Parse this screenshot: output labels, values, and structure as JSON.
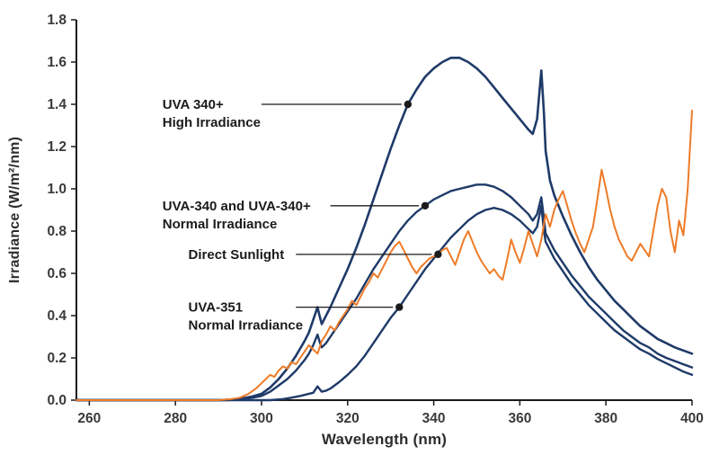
{
  "chart_data": {
    "type": "line",
    "title": "",
    "xlabel": "Wavelength (nm)",
    "ylabel": "Irradiance (W/m²/nm)",
    "xlim": [
      257,
      400
    ],
    "ylim": [
      0,
      1.8
    ],
    "x_ticks": [
      260,
      280,
      300,
      320,
      340,
      360,
      380,
      400
    ],
    "y_ticks": [
      0.0,
      0.2,
      0.4,
      0.6,
      0.8,
      1.0,
      1.2,
      1.4,
      1.6,
      1.8
    ],
    "grid": false,
    "legend_position": "none",
    "axis_color": "#1a1a1a",
    "tick_text_color": "#3a3a3a",
    "annotation_color": "#1b1b1b",
    "series": [
      {
        "name": "UVA 340+ High Irradiance",
        "color": "#1e3a68",
        "width": 2.6,
        "points": [
          [
            257,
            0
          ],
          [
            290,
            0
          ],
          [
            294,
            0.004
          ],
          [
            296,
            0.01
          ],
          [
            298,
            0.018
          ],
          [
            300,
            0.03
          ],
          [
            302,
            0.06
          ],
          [
            304,
            0.1
          ],
          [
            306,
            0.15
          ],
          [
            308,
            0.21
          ],
          [
            310,
            0.28
          ],
          [
            311,
            0.32
          ],
          [
            312,
            0.38
          ],
          [
            313,
            0.44
          ],
          [
            313.6,
            0.39
          ],
          [
            314,
            0.36
          ],
          [
            315,
            0.4
          ],
          [
            316,
            0.44
          ],
          [
            318,
            0.53
          ],
          [
            320,
            0.62
          ],
          [
            322,
            0.72
          ],
          [
            324,
            0.83
          ],
          [
            326,
            0.95
          ],
          [
            328,
            1.07
          ],
          [
            330,
            1.19
          ],
          [
            332,
            1.3
          ],
          [
            334,
            1.4
          ],
          [
            336,
            1.47
          ],
          [
            338,
            1.53
          ],
          [
            340,
            1.57
          ],
          [
            342,
            1.6
          ],
          [
            344,
            1.62
          ],
          [
            346,
            1.62
          ],
          [
            348,
            1.6
          ],
          [
            350,
            1.57
          ],
          [
            352,
            1.53
          ],
          [
            354,
            1.48
          ],
          [
            356,
            1.43
          ],
          [
            358,
            1.38
          ],
          [
            360,
            1.33
          ],
          [
            362,
            1.28
          ],
          [
            363,
            1.26
          ],
          [
            364,
            1.33
          ],
          [
            365,
            1.56
          ],
          [
            365.6,
            1.36
          ],
          [
            366,
            1.18
          ],
          [
            367,
            1.04
          ],
          [
            368,
            0.97
          ],
          [
            370,
            0.87
          ],
          [
            372,
            0.78
          ],
          [
            374,
            0.7
          ],
          [
            376,
            0.63
          ],
          [
            378,
            0.57
          ],
          [
            380,
            0.52
          ],
          [
            382,
            0.47
          ],
          [
            384,
            0.43
          ],
          [
            386,
            0.39
          ],
          [
            388,
            0.35
          ],
          [
            390,
            0.32
          ],
          [
            392,
            0.29
          ],
          [
            394,
            0.27
          ],
          [
            396,
            0.25
          ],
          [
            398,
            0.235
          ],
          [
            400,
            0.22
          ]
        ]
      },
      {
        "name": "UVA-340 and UVA-340+ Normal Irradiance",
        "color": "#1e3a68",
        "width": 2.4,
        "points": [
          [
            257,
            0
          ],
          [
            292,
            0
          ],
          [
            296,
            0.006
          ],
          [
            298,
            0.012
          ],
          [
            300,
            0.02
          ],
          [
            302,
            0.04
          ],
          [
            304,
            0.07
          ],
          [
            306,
            0.1
          ],
          [
            308,
            0.14
          ],
          [
            310,
            0.19
          ],
          [
            311,
            0.22
          ],
          [
            312,
            0.26
          ],
          [
            313,
            0.31
          ],
          [
            313.6,
            0.27
          ],
          [
            314,
            0.25
          ],
          [
            315,
            0.27
          ],
          [
            316,
            0.3
          ],
          [
            318,
            0.36
          ],
          [
            320,
            0.42
          ],
          [
            322,
            0.48
          ],
          [
            324,
            0.55
          ],
          [
            326,
            0.62
          ],
          [
            328,
            0.68
          ],
          [
            330,
            0.74
          ],
          [
            332,
            0.8
          ],
          [
            334,
            0.85
          ],
          [
            336,
            0.89
          ],
          [
            338,
            0.92
          ],
          [
            340,
            0.95
          ],
          [
            342,
            0.97
          ],
          [
            344,
            0.99
          ],
          [
            346,
            1.0
          ],
          [
            348,
            1.01
          ],
          [
            350,
            1.02
          ],
          [
            352,
            1.02
          ],
          [
            354,
            1.01
          ],
          [
            356,
            0.99
          ],
          [
            358,
            0.96
          ],
          [
            360,
            0.92
          ],
          [
            362,
            0.88
          ],
          [
            363,
            0.85
          ],
          [
            364,
            0.88
          ],
          [
            365,
            0.96
          ],
          [
            365.6,
            0.86
          ],
          [
            366,
            0.79
          ],
          [
            368,
            0.71
          ],
          [
            370,
            0.65
          ],
          [
            372,
            0.59
          ],
          [
            374,
            0.54
          ],
          [
            376,
            0.49
          ],
          [
            378,
            0.45
          ],
          [
            380,
            0.41
          ],
          [
            382,
            0.37
          ],
          [
            384,
            0.33
          ],
          [
            386,
            0.3
          ],
          [
            388,
            0.27
          ],
          [
            390,
            0.25
          ],
          [
            392,
            0.22
          ],
          [
            394,
            0.2
          ],
          [
            396,
            0.185
          ],
          [
            398,
            0.17
          ],
          [
            400,
            0.155
          ]
        ]
      },
      {
        "name": "UVA-351 Normal Irradiance",
        "color": "#1e3a68",
        "width": 2.4,
        "points": [
          [
            257,
            0
          ],
          [
            302,
            0
          ],
          [
            305,
            0.005
          ],
          [
            307,
            0.012
          ],
          [
            309,
            0.02
          ],
          [
            311,
            0.03
          ],
          [
            312,
            0.035
          ],
          [
            313,
            0.065
          ],
          [
            314,
            0.04
          ],
          [
            315,
            0.045
          ],
          [
            316,
            0.055
          ],
          [
            318,
            0.085
          ],
          [
            320,
            0.12
          ],
          [
            322,
            0.16
          ],
          [
            324,
            0.21
          ],
          [
            326,
            0.27
          ],
          [
            328,
            0.33
          ],
          [
            330,
            0.39
          ],
          [
            332,
            0.44
          ],
          [
            334,
            0.5
          ],
          [
            336,
            0.56
          ],
          [
            338,
            0.62
          ],
          [
            340,
            0.67
          ],
          [
            342,
            0.72
          ],
          [
            344,
            0.77
          ],
          [
            346,
            0.81
          ],
          [
            348,
            0.85
          ],
          [
            350,
            0.88
          ],
          [
            352,
            0.9
          ],
          [
            354,
            0.91
          ],
          [
            356,
            0.9
          ],
          [
            358,
            0.88
          ],
          [
            360,
            0.85
          ],
          [
            362,
            0.81
          ],
          [
            363,
            0.79
          ],
          [
            364,
            0.82
          ],
          [
            365,
            0.92
          ],
          [
            365.6,
            0.8
          ],
          [
            366,
            0.75
          ],
          [
            368,
            0.67
          ],
          [
            370,
            0.61
          ],
          [
            372,
            0.55
          ],
          [
            374,
            0.5
          ],
          [
            376,
            0.45
          ],
          [
            378,
            0.41
          ],
          [
            380,
            0.37
          ],
          [
            382,
            0.33
          ],
          [
            384,
            0.3
          ],
          [
            386,
            0.27
          ],
          [
            388,
            0.24
          ],
          [
            390,
            0.22
          ],
          [
            392,
            0.195
          ],
          [
            394,
            0.175
          ],
          [
            396,
            0.155
          ],
          [
            398,
            0.135
          ],
          [
            400,
            0.12
          ]
        ]
      },
      {
        "name": "Direct Sunlight",
        "color": "#ee7b28",
        "width": 2.0,
        "points": [
          [
            257,
            0
          ],
          [
            290,
            0
          ],
          [
            293,
            0.005
          ],
          [
            295,
            0.012
          ],
          [
            297,
            0.03
          ],
          [
            299,
            0.06
          ],
          [
            300,
            0.08
          ],
          [
            301,
            0.1
          ],
          [
            302,
            0.12
          ],
          [
            303,
            0.11
          ],
          [
            304,
            0.14
          ],
          [
            305,
            0.16
          ],
          [
            306,
            0.15
          ],
          [
            307,
            0.18
          ],
          [
            308,
            0.17
          ],
          [
            309,
            0.2
          ],
          [
            310,
            0.23
          ],
          [
            311,
            0.26
          ],
          [
            312,
            0.24
          ],
          [
            313,
            0.22
          ],
          [
            314,
            0.28
          ],
          [
            315,
            0.31
          ],
          [
            316,
            0.35
          ],
          [
            317,
            0.33
          ],
          [
            318,
            0.37
          ],
          [
            319,
            0.4
          ],
          [
            320,
            0.43
          ],
          [
            321,
            0.47
          ],
          [
            322,
            0.45
          ],
          [
            323,
            0.49
          ],
          [
            324,
            0.53
          ],
          [
            325,
            0.56
          ],
          [
            326,
            0.6
          ],
          [
            327,
            0.58
          ],
          [
            328,
            0.62
          ],
          [
            329,
            0.66
          ],
          [
            330,
            0.7
          ],
          [
            331,
            0.73
          ],
          [
            332,
            0.75
          ],
          [
            333,
            0.71
          ],
          [
            334,
            0.67
          ],
          [
            335,
            0.63
          ],
          [
            336,
            0.6
          ],
          [
            337,
            0.63
          ],
          [
            338,
            0.65
          ],
          [
            339,
            0.67
          ],
          [
            341,
            0.69
          ],
          [
            342,
            0.71
          ],
          [
            343,
            0.72
          ],
          [
            344,
            0.68
          ],
          [
            345,
            0.64
          ],
          [
            346,
            0.7
          ],
          [
            347,
            0.76
          ],
          [
            348,
            0.8
          ],
          [
            349,
            0.75
          ],
          [
            350,
            0.7
          ],
          [
            351,
            0.66
          ],
          [
            352,
            0.63
          ],
          [
            353,
            0.6
          ],
          [
            354,
            0.62
          ],
          [
            355,
            0.59
          ],
          [
            356,
            0.57
          ],
          [
            357,
            0.66
          ],
          [
            358,
            0.76
          ],
          [
            359,
            0.7
          ],
          [
            360,
            0.65
          ],
          [
            361,
            0.72
          ],
          [
            362,
            0.8
          ],
          [
            363,
            0.74
          ],
          [
            364,
            0.68
          ],
          [
            365,
            0.76
          ],
          [
            366,
            0.88
          ],
          [
            367,
            0.82
          ],
          [
            368,
            0.9
          ],
          [
            369,
            0.95
          ],
          [
            370,
            0.99
          ],
          [
            371,
            0.92
          ],
          [
            372,
            0.85
          ],
          [
            373,
            0.79
          ],
          [
            374,
            0.74
          ],
          [
            375,
            0.7
          ],
          [
            376,
            0.76
          ],
          [
            377,
            0.82
          ],
          [
            378,
            0.95
          ],
          [
            379,
            1.09
          ],
          [
            380,
            1.0
          ],
          [
            381,
            0.9
          ],
          [
            382,
            0.82
          ],
          [
            383,
            0.76
          ],
          [
            384,
            0.72
          ],
          [
            385,
            0.68
          ],
          [
            386,
            0.66
          ],
          [
            387,
            0.7
          ],
          [
            388,
            0.74
          ],
          [
            389,
            0.71
          ],
          [
            390,
            0.68
          ],
          [
            391,
            0.8
          ],
          [
            392,
            0.92
          ],
          [
            393,
            1.0
          ],
          [
            394,
            0.96
          ],
          [
            395,
            0.8
          ],
          [
            396,
            0.7
          ],
          [
            397,
            0.85
          ],
          [
            398,
            0.78
          ],
          [
            399,
            1.0
          ],
          [
            400,
            1.37
          ]
        ]
      }
    ],
    "annotations": [
      {
        "lines": [
          "UVA 340+",
          "High Irradiance"
        ],
        "text_x": 277,
        "leader_x": 300,
        "dot_x": 334,
        "dot_y": 1.4
      },
      {
        "lines": [
          "UVA-340 and UVA-340+",
          "Normal Irradiance"
        ],
        "text_x": 277,
        "leader_x": 316,
        "dot_x": 338,
        "dot_y": 0.92
      },
      {
        "lines": [
          "Direct Sunlight"
        ],
        "text_x": 283,
        "leader_x": 308,
        "dot_x": 341,
        "dot_y": 0.69
      },
      {
        "lines": [
          "UVA-351",
          "Normal Irradiance"
        ],
        "text_x": 283,
        "leader_x": 308,
        "dot_x": 332,
        "dot_y": 0.44
      }
    ]
  }
}
